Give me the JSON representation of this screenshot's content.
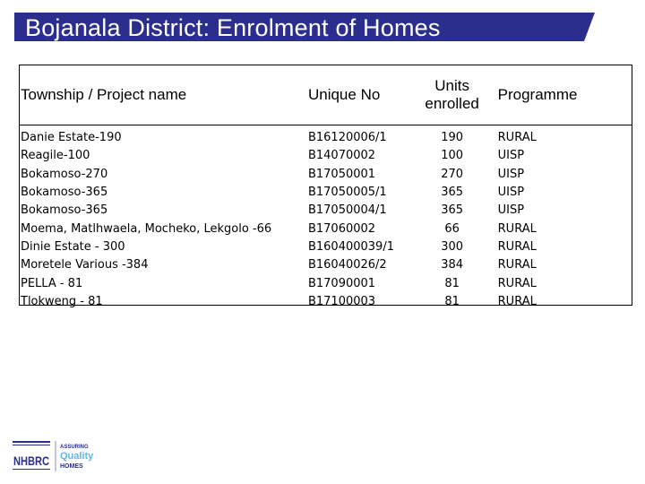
{
  "slide": {
    "title": "Bojanala District:  Enrolment of Homes",
    "band_color": "#2b2e8c"
  },
  "table": {
    "headers": {
      "township": "Township / Project name",
      "unique_no": "Unique No",
      "units_line1": "Units",
      "units_line2": "enrolled",
      "programme": "Programme"
    },
    "rows": [
      {
        "township": "Danie Estate-190",
        "unique_no": "B16120006/1",
        "units": "190",
        "programme": "RURAL"
      },
      {
        "township": "Reagile-100",
        "unique_no": "B14070002",
        "units": "100",
        "programme": "UISP"
      },
      {
        "township": "Bokamoso-270",
        "unique_no": "B17050001",
        "units": "270",
        "programme": "UISP"
      },
      {
        "township": "Bokamoso-365",
        "unique_no": "B17050005/1",
        "units": "365",
        "programme": "UISP"
      },
      {
        "township": "Bokamoso-365",
        "unique_no": "B17050004/1",
        "units": "365",
        "programme": "UISP"
      },
      {
        "township": "Moema, Matlhwaela, Mocheko, Lekgolo -66",
        "unique_no": "B17060002",
        "units": "66",
        "programme": "RURAL"
      },
      {
        "township": "Dinie Estate - 300",
        "unique_no": "B160400039/1",
        "units": "300",
        "programme": "RURAL"
      },
      {
        "township": "Moretele Various -384",
        "unique_no": "B16040026/2",
        "units": "384",
        "programme": "RURAL"
      },
      {
        "township": "PELLA - 81",
        "unique_no": "B17090001",
        "units": "81",
        "programme": "RURAL"
      },
      {
        "township": "Tlokweng - 81",
        "unique_no": "B17100003",
        "units": "81",
        "programme": "RURAL"
      }
    ]
  },
  "logo": {
    "brand": "NHBRC",
    "line1": "ASSURING",
    "line2": "Quality",
    "line3": "HOMES",
    "colors": {
      "navy": "#2b2e8c",
      "accent": "#5fb8e0"
    }
  }
}
